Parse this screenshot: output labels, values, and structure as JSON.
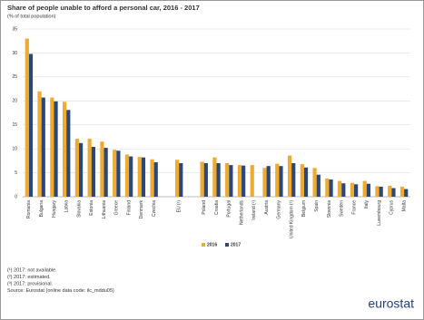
{
  "chart_data": {
    "type": "bar",
    "title": "Share of people unable to afford a personal car, 2016 - 2017",
    "subtitle": "(% of total population)",
    "categories": [
      "Romania",
      "Bulgaria",
      "Hungary",
      "Latvia",
      "Slovakia",
      "Estonia",
      "Lithuania",
      "Greece",
      "Finland",
      "Denmark",
      "Czechia",
      null,
      "EU (²)",
      null,
      "Poland",
      "Croatia",
      "Portugal",
      "Netherlands",
      "Ireland (¹)",
      "Austria",
      "Germany",
      "United Kingdom (³)",
      "Belgium",
      "Spain",
      "Slovenia",
      "Sweden",
      "France",
      "Italy",
      "Luxembourg",
      "Cyprus",
      "Malta"
    ],
    "series": [
      {
        "name": "2016",
        "color": "#f0aa2e",
        "values": [
          33,
          22,
          20.7,
          19.8,
          12.1,
          12.1,
          11.5,
          9.8,
          8.8,
          8.3,
          7.8,
          null,
          7.7,
          null,
          7.3,
          8.2,
          7.0,
          6.6,
          6.6,
          6.0,
          6.9,
          8.6,
          6.8,
          6.0,
          3.8,
          3.3,
          2.9,
          3.3,
          2.2,
          2.3,
          2.1
        ]
      },
      {
        "name": "2017",
        "color": "#2b4878",
        "values": [
          29.8,
          20.7,
          19.9,
          18.1,
          11.2,
          10.4,
          10.2,
          9.6,
          8.4,
          8.2,
          7.2,
          null,
          7.0,
          null,
          7.0,
          7.0,
          6.6,
          6.5,
          null,
          6.4,
          6.4,
          7.0,
          6.1,
          4.6,
          3.6,
          2.8,
          2.6,
          2.7,
          2.1,
          1.8,
          1.6
        ]
      }
    ],
    "ylim": [
      0,
      35
    ],
    "yticks": [
      0,
      5,
      10,
      15,
      20,
      25,
      30,
      35
    ],
    "grid": true,
    "legend": "bottom",
    "footnotes": [
      "(¹) 2017: not available.",
      "(²) 2017: estimated.",
      "(³) 2017: provisional.",
      "Source: Eurostat (online data code: ilc_mddu05)"
    ],
    "logo": "eurostat"
  }
}
